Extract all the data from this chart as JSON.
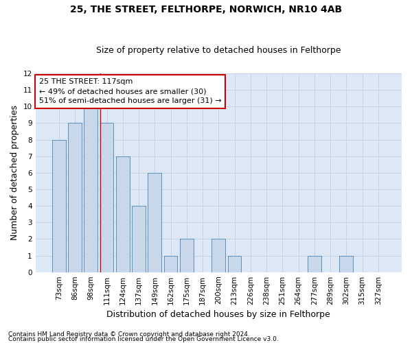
{
  "title1": "25, THE STREET, FELTHORPE, NORWICH, NR10 4AB",
  "title2": "Size of property relative to detached houses in Felthorpe",
  "xlabel": "Distribution of detached houses by size in Felthorpe",
  "ylabel": "Number of detached properties",
  "categories": [
    "73sqm",
    "86sqm",
    "98sqm",
    "111sqm",
    "124sqm",
    "137sqm",
    "149sqm",
    "162sqm",
    "175sqm",
    "187sqm",
    "200sqm",
    "213sqm",
    "226sqm",
    "238sqm",
    "251sqm",
    "264sqm",
    "277sqm",
    "289sqm",
    "302sqm",
    "315sqm",
    "327sqm"
  ],
  "values": [
    8,
    9,
    10,
    9,
    7,
    4,
    6,
    1,
    2,
    0,
    2,
    1,
    0,
    0,
    0,
    0,
    1,
    0,
    1,
    0,
    0
  ],
  "bar_color": "#c8d8ea",
  "bar_edge_color": "#5b8db8",
  "red_line_x": 3,
  "annotation_line1": "25 THE STREET: 117sqm",
  "annotation_line2": "← 49% of detached houses are smaller (30)",
  "annotation_line3": "51% of semi-detached houses are larger (31) →",
  "annotation_box_color": "white",
  "annotation_box_edge": "#cc0000",
  "ylim": [
    0,
    12
  ],
  "yticks": [
    0,
    1,
    2,
    3,
    4,
    5,
    6,
    7,
    8,
    9,
    10,
    11,
    12
  ],
  "grid_color": "#c8d4e4",
  "background_color": "#dce8f5",
  "footer1": "Contains HM Land Registry data © Crown copyright and database right 2024.",
  "footer2": "Contains public sector information licensed under the Open Government Licence v3.0.",
  "title1_fontsize": 10,
  "title2_fontsize": 9,
  "axis_label_fontsize": 9,
  "tick_fontsize": 7.5,
  "annotation_fontsize": 8,
  "footer_fontsize": 6.5
}
